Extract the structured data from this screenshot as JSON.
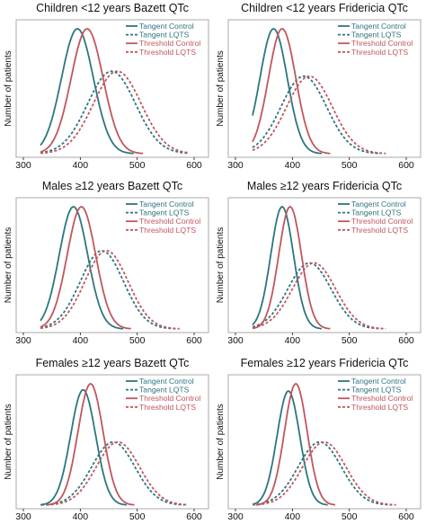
{
  "figure": {
    "colors": {
      "tangent": "#2e7580",
      "threshold": "#c0575c",
      "frame": "#b8b8b8",
      "text": "#111111"
    }
  },
  "chart_data": [
    {
      "type": "line",
      "title": "Children <12 years Bazett QTc",
      "ylabel": "Number of patients",
      "xlim": [
        300,
        600
      ],
      "xticks": [
        300,
        400,
        500,
        600
      ],
      "legend": "top-right",
      "grid": false,
      "series": [
        {
          "name": "Tangent Control",
          "color": "#2e7580",
          "style": "solid",
          "mean": 395,
          "sd": 28,
          "peak": 1.0
        },
        {
          "name": "Tangent LQTS",
          "color": "#2e7580",
          "style": "dashed",
          "mean": 455,
          "sd": 42,
          "peak": 0.66
        },
        {
          "name": "Threshold Control",
          "color": "#c0575c",
          "style": "solid",
          "mean": 412,
          "sd": 28,
          "peak": 1.0
        },
        {
          "name": "Threshold LQTS",
          "color": "#c0575c",
          "style": "dashed",
          "mean": 465,
          "sd": 42,
          "peak": 0.66
        }
      ]
    },
    {
      "type": "line",
      "title": "Children <12 years Fridericia QTc",
      "ylabel": "Number of patients",
      "xlim": [
        300,
        600
      ],
      "xticks": [
        300,
        400,
        500,
        600
      ],
      "legend": "top-right",
      "grid": false,
      "series": [
        {
          "name": "Tangent Control",
          "color": "#2e7580",
          "style": "solid",
          "mean": 367,
          "sd": 24,
          "peak": 1.0
        },
        {
          "name": "Tangent LQTS",
          "color": "#2e7580",
          "style": "dashed",
          "mean": 420,
          "sd": 40,
          "peak": 0.62
        },
        {
          "name": "Threshold Control",
          "color": "#c0575c",
          "style": "solid",
          "mean": 382,
          "sd": 24,
          "peak": 1.0
        },
        {
          "name": "Threshold LQTS",
          "color": "#c0575c",
          "style": "dashed",
          "mean": 430,
          "sd": 40,
          "peak": 0.62
        }
      ]
    },
    {
      "type": "line",
      "title": "Males ≥12 years Bazett QTc",
      "ylabel": "Number of patients",
      "xlim": [
        300,
        600
      ],
      "xticks": [
        300,
        400,
        500,
        600
      ],
      "legend": "top-right",
      "grid": false,
      "series": [
        {
          "name": "Tangent Control",
          "color": "#2e7580",
          "style": "solid",
          "mean": 388,
          "sd": 25,
          "peak": 1.0
        },
        {
          "name": "Tangent LQTS",
          "color": "#2e7580",
          "style": "dashed",
          "mean": 438,
          "sd": 38,
          "peak": 0.64
        },
        {
          "name": "Threshold Control",
          "color": "#c0575c",
          "style": "solid",
          "mean": 402,
          "sd": 25,
          "peak": 1.0
        },
        {
          "name": "Threshold LQTS",
          "color": "#c0575c",
          "style": "dashed",
          "mean": 446,
          "sd": 38,
          "peak": 0.64
        }
      ]
    },
    {
      "type": "line",
      "title": "Males ≥12 years Fridericia QTc",
      "ylabel": "Number of patients",
      "xlim": [
        300,
        600
      ],
      "xticks": [
        300,
        400,
        500,
        600
      ],
      "legend": "top-right",
      "grid": false,
      "series": [
        {
          "name": "Tangent Control",
          "color": "#2e7580",
          "style": "solid",
          "mean": 382,
          "sd": 20,
          "peak": 1.0
        },
        {
          "name": "Tangent LQTS",
          "color": "#2e7580",
          "style": "dashed",
          "mean": 430,
          "sd": 38,
          "peak": 0.54
        },
        {
          "name": "Threshold Control",
          "color": "#c0575c",
          "style": "solid",
          "mean": 396,
          "sd": 20,
          "peak": 1.0
        },
        {
          "name": "Threshold LQTS",
          "color": "#c0575c",
          "style": "dashed",
          "mean": 438,
          "sd": 38,
          "peak": 0.54
        }
      ]
    },
    {
      "type": "line",
      "title": "Females ≥12 years Bazett QTc",
      "ylabel": "Number of patients",
      "xlim": [
        300,
        600
      ],
      "xticks": [
        300,
        400,
        500,
        600
      ],
      "legend": "top-right",
      "grid": false,
      "series": [
        {
          "name": "Tangent Control",
          "color": "#2e7580",
          "style": "solid",
          "mean": 405,
          "sd": 22,
          "peak": 0.95
        },
        {
          "name": "Tangent LQTS",
          "color": "#2e7580",
          "style": "dashed",
          "mean": 458,
          "sd": 38,
          "peak": 0.52
        },
        {
          "name": "Threshold Control",
          "color": "#c0575c",
          "style": "solid",
          "mean": 418,
          "sd": 22,
          "peak": 1.0
        },
        {
          "name": "Threshold LQTS",
          "color": "#c0575c",
          "style": "dashed",
          "mean": 466,
          "sd": 38,
          "peak": 0.52
        }
      ]
    },
    {
      "type": "line",
      "title": "Females ≥12 years Fridericia QTc",
      "ylabel": "Number of patients",
      "xlim": [
        300,
        600
      ],
      "xticks": [
        300,
        400,
        500,
        600
      ],
      "legend": "top-right",
      "grid": false,
      "series": [
        {
          "name": "Tangent Control",
          "color": "#2e7580",
          "style": "solid",
          "mean": 393,
          "sd": 20,
          "peak": 0.94
        },
        {
          "name": "Tangent LQTS",
          "color": "#2e7580",
          "style": "dashed",
          "mean": 448,
          "sd": 38,
          "peak": 0.52
        },
        {
          "name": "Threshold Control",
          "color": "#c0575c",
          "style": "solid",
          "mean": 406,
          "sd": 20,
          "peak": 1.0
        },
        {
          "name": "Threshold LQTS",
          "color": "#c0575c",
          "style": "dashed",
          "mean": 456,
          "sd": 38,
          "peak": 0.52
        }
      ]
    }
  ]
}
